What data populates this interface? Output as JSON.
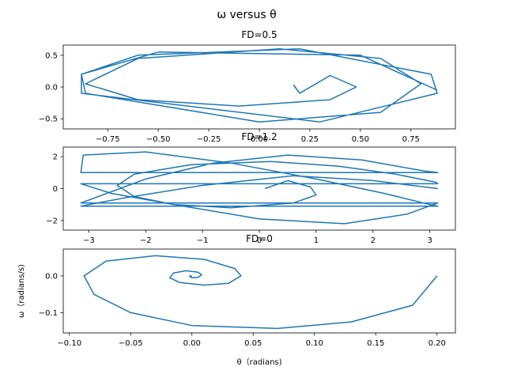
{
  "figure": {
    "suptitle": "ω versus θ",
    "series_color": "#1f77b4"
  },
  "chart_data": [
    {
      "type": "line",
      "title": "FD=0.5",
      "xlabel": "",
      "ylabel": "",
      "xlim": [
        -0.97,
        0.97
      ],
      "ylim": [
        -0.66,
        0.66
      ],
      "xticks": [
        -0.75,
        -0.5,
        -0.25,
        0.0,
        0.25,
        0.5,
        0.75
      ],
      "xtick_labels": [
        "−0.75",
        "−0.50",
        "−0.25",
        "0.00",
        "0.25",
        "0.50",
        "0.75"
      ],
      "yticks": [
        -0.5,
        0.0,
        0.5
      ],
      "ytick_labels": [
        "−0.5",
        "0.0",
        "0.5"
      ],
      "grid": false,
      "description_of_curve": "outward spiral from (0.18, 0) settling onto a limit cycle of amplitude about 0.88 in theta and 0.58 in omega",
      "x": [
        0.18,
        0.17,
        0.2,
        0.35,
        0.48,
        0.35,
        -0.1,
        -0.6,
        -0.86,
        -0.6,
        0.1,
        0.6,
        0.8,
        0.6,
        0.0,
        -0.86,
        -0.88,
        -0.6,
        0.2,
        0.85,
        0.88,
        0.3,
        -0.88,
        -0.88,
        -0.5,
        0.5,
        0.88
      ],
      "y": [
        -0.02,
        0.03,
        -0.1,
        0.18,
        0.0,
        -0.2,
        -0.3,
        -0.2,
        0.05,
        0.45,
        0.6,
        0.45,
        0.05,
        -0.4,
        -0.55,
        -0.1,
        0.2,
        0.5,
        0.6,
        0.2,
        -0.1,
        -0.55,
        -0.1,
        0.2,
        0.55,
        0.5,
        -0.05
      ]
    },
    {
      "type": "line",
      "title": "FD=1.2",
      "xlabel": "",
      "ylabel": "",
      "xlim": [
        -3.45,
        3.45
      ],
      "ylim": [
        -2.6,
        2.6
      ],
      "xticks": [
        -3,
        -2,
        -1,
        0,
        1,
        2,
        3
      ],
      "xtick_labels": [
        "−3",
        "−2",
        "−1",
        "0",
        "1",
        "2",
        "3"
      ],
      "yticks": [
        -2,
        0,
        2
      ],
      "ytick_labels": [
        "−2",
        "0",
        "2"
      ],
      "grid": false,
      "description_of_curve": "chaotic trajectory wrapped to (-pi, pi] with horizontal jumps at the wrap boundary",
      "x": [
        0.1,
        0.5,
        0.9,
        1.0,
        0.6,
        -0.5,
        -1.5,
        -2.2,
        -2.5,
        -2.2,
        -1.2,
        0.2,
        1.4,
        2.4,
        3.1,
        3.14,
        -3.14,
        -2.6,
        -1.5,
        0.0,
        1.5,
        2.6,
        3.14,
        -3.14,
        -2.0,
        -0.8,
        0.5,
        1.8,
        2.9,
        3.14,
        -3.14,
        -3.1,
        -2.0,
        -0.5,
        1.0,
        2.2,
        3.0,
        3.14,
        -3.14,
        -2.4,
        -1.0,
        0.6,
        2.0,
        3.14
      ],
      "y": [
        0.0,
        0.5,
        0.1,
        -0.4,
        -0.9,
        -1.2,
        -1.0,
        -0.5,
        0.2,
        0.9,
        1.5,
        1.7,
        1.4,
        0.9,
        0.4,
        0.3,
        0.3,
        -0.3,
        -1.0,
        -1.9,
        -2.2,
        -1.6,
        -0.9,
        -0.9,
        0.6,
        1.6,
        2.1,
        1.8,
        1.1,
        1.0,
        1.0,
        2.1,
        2.3,
        1.6,
        0.6,
        -0.3,
        -1.0,
        -1.1,
        -1.1,
        -0.6,
        0.2,
        0.8,
        0.5,
        0.0
      ]
    },
    {
      "type": "line",
      "title": "FD=0",
      "xlabel": "θ（radians)",
      "ylabel": "ω（radians/s)",
      "xlim": [
        -0.105,
        0.215
      ],
      "ylim": [
        -0.155,
        0.073
      ],
      "xticks": [
        -0.1,
        -0.05,
        0.0,
        0.05,
        0.1,
        0.15,
        0.2
      ],
      "xtick_labels": [
        "−0.10",
        "−0.05",
        "0.00",
        "0.05",
        "0.10",
        "0.15",
        "0.20"
      ],
      "yticks": [
        -0.1,
        0.0
      ],
      "ytick_labels": [
        "−0.1",
        "0.0"
      ],
      "grid": false,
      "description_of_curve": "damped pendulum spiralling inward from (0.2, 0) to the origin",
      "x": [
        0.2,
        0.18,
        0.13,
        0.07,
        0.0,
        -0.05,
        -0.08,
        -0.088,
        -0.07,
        -0.03,
        0.01,
        0.035,
        0.04,
        0.03,
        0.01,
        -0.01,
        -0.018,
        -0.015,
        -0.005,
        0.005,
        0.008,
        0.005,
        0.0,
        -0.002,
        0.0
      ],
      "y": [
        0.0,
        -0.08,
        -0.125,
        -0.143,
        -0.135,
        -0.1,
        -0.05,
        0.0,
        0.04,
        0.055,
        0.045,
        0.02,
        0.0,
        -0.02,
        -0.025,
        -0.018,
        -0.005,
        0.008,
        0.014,
        0.01,
        0.003,
        -0.004,
        -0.005,
        -0.001,
        0.0
      ]
    }
  ]
}
